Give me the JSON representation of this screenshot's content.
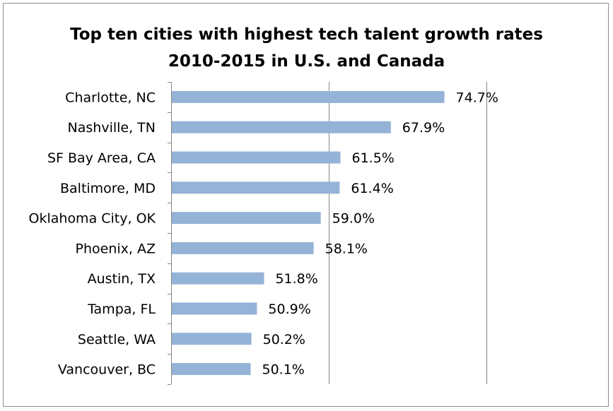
{
  "chart_data": {
    "type": "bar",
    "orientation": "horizontal",
    "title": "Top ten cities with highest tech talent growth rates 2010-2015 in U.S. and Canada",
    "title_lines": [
      "Top ten cities with highest tech talent growth rates",
      "2010-2015 in U.S. and Canada"
    ],
    "categories": [
      "Charlotte, NC",
      "Nashville, TN",
      "SF Bay Area, CA",
      "Baltimore, MD",
      "Oklahoma City, OK",
      "Phoenix, AZ",
      "Austin, TX",
      "Tampa, FL",
      "Seattle, WA",
      "Vancouver, BC"
    ],
    "values": [
      74.7,
      67.9,
      61.5,
      61.4,
      59.0,
      58.1,
      51.8,
      50.9,
      50.2,
      50.1
    ],
    "value_labels": [
      "74.7%",
      "67.9%",
      "61.5%",
      "61.4%",
      "59.0%",
      "58.1%",
      "51.8%",
      "50.9%",
      "50.2%",
      "50.1%"
    ],
    "xlim": [
      40,
      80
    ],
    "xlabel": "",
    "ylabel": "",
    "grid": "vertical major gridlines",
    "legend": "none",
    "bar_color": "#95b3d7"
  }
}
